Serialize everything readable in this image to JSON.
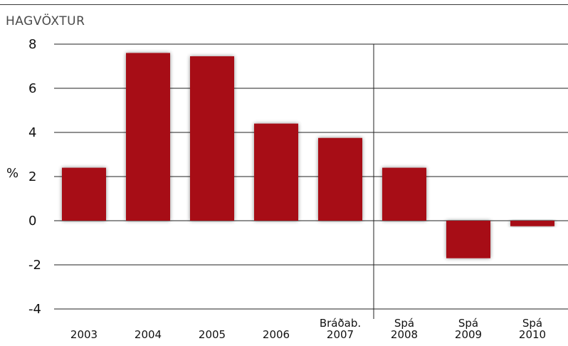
{
  "chart_data": {
    "type": "bar",
    "title": "HAGVÖXTUR",
    "ylabel": "%",
    "xlabel": "",
    "ylim": [
      -4,
      8
    ],
    "yticks": [
      -4,
      -2,
      0,
      2,
      4,
      6,
      8
    ],
    "grid": true,
    "categories": [
      [
        "2003"
      ],
      [
        "2004"
      ],
      [
        "2005"
      ],
      [
        "2006"
      ],
      [
        "Bráðab.",
        "2007"
      ],
      [
        "Spá",
        "2008"
      ],
      [
        "Spá",
        "2009"
      ],
      [
        "Spá",
        "2010"
      ]
    ],
    "values": [
      2.4,
      7.6,
      7.45,
      4.4,
      3.75,
      2.4,
      -1.7,
      -0.25
    ],
    "bar_color": "#a71116"
  }
}
